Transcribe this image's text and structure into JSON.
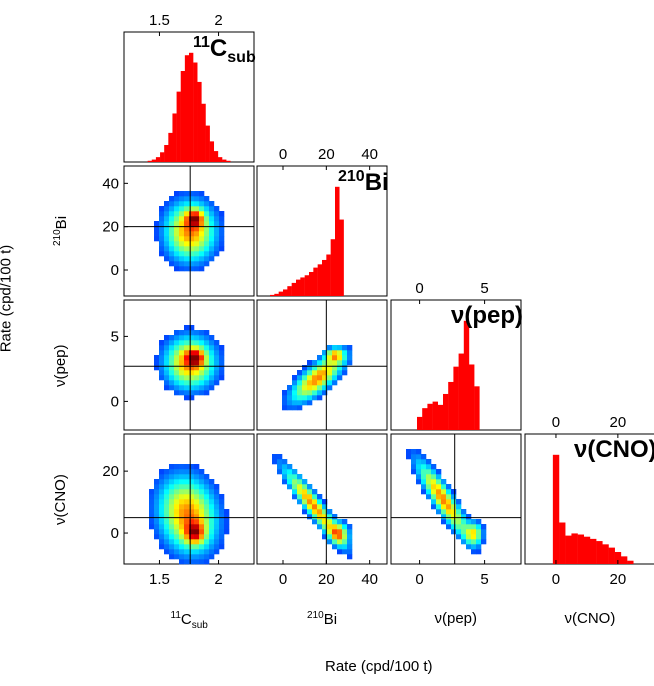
{
  "figure": {
    "global_xlabel": "Rate (cpd/100 t)",
    "global_ylabel": "Rate (cpd/100 t)"
  },
  "chart_data": {
    "type": "corner",
    "grid": false,
    "variables": [
      {
        "key": "c11",
        "label_base": "C",
        "label_sup": "11",
        "label_sub": "sub",
        "range": [
          1.2,
          2.3
        ],
        "ticks": [
          1.5,
          2
        ]
      },
      {
        "key": "bi210",
        "label_base": "Bi",
        "label_sup": "210",
        "label_sub": "",
        "range": [
          -12,
          48
        ],
        "ticks": [
          0,
          20,
          40
        ]
      },
      {
        "key": "pep",
        "label_base": "ν(pep)",
        "label_sup": "",
        "label_sub": "",
        "range": [
          -2.2,
          7.8
        ],
        "ticks": [
          0,
          5
        ]
      },
      {
        "key": "cno",
        "label_base": "ν(CNO)",
        "label_sup": "",
        "label_sub": "",
        "range": [
          -10,
          32
        ],
        "ticks": [
          0,
          20
        ]
      }
    ],
    "markers": {
      "c11": 1.76,
      "bi210": 20,
      "pep": 2.7,
      "cno": 5
    },
    "histograms": [
      {
        "var": "c11",
        "bins": [
          1.4,
          2.1
        ],
        "counts": [
          1,
          2,
          4,
          8,
          14,
          24,
          40,
          58,
          75,
          88,
          90,
          82,
          66,
          48,
          30,
          17,
          9,
          4,
          2,
          1
        ]
      },
      {
        "var": "bi210",
        "bins": [
          -6,
          28
        ],
        "counts": [
          1,
          2,
          4,
          6,
          9,
          12,
          15,
          17,
          19,
          22,
          26,
          29,
          33,
          38,
          52,
          100,
          70
        ]
      },
      {
        "var": "pep",
        "bins": [
          -0.2,
          4.6
        ],
        "counts": [
          12,
          20,
          24,
          26,
          23,
          33,
          44,
          58,
          70,
          100,
          60,
          40
        ]
      },
      {
        "var": "cno",
        "bins": [
          -1,
          25
        ],
        "counts": [
          100,
          38,
          26,
          28,
          27,
          25,
          23,
          21,
          18,
          15,
          11,
          7,
          3
        ]
      }
    ],
    "scatter": [
      {
        "x": "c11",
        "y": "bi210",
        "center": [
          1.76,
          18
        ],
        "sigma": [
          0.14,
          9
        ],
        "rho": 0.0,
        "peak": [
          1.8,
          24
        ]
      },
      {
        "x": "c11",
        "y": "pep",
        "center": [
          1.76,
          3
        ],
        "sigma": [
          0.14,
          1.3
        ],
        "rho": 0.0,
        "peak": [
          1.8,
          3.4
        ]
      },
      {
        "x": "c11",
        "y": "cno",
        "center": [
          1.74,
          6
        ],
        "sigma": [
          0.16,
          8
        ],
        "rho": -0.15,
        "peak": [
          1.8,
          0
        ]
      },
      {
        "x": "bi210",
        "y": "pep",
        "center": [
          16,
          1.8
        ],
        "sigma": [
          8,
          1.2
        ],
        "rho": 0.75,
        "peak": [
          24,
          3.6
        ]
      },
      {
        "x": "bi210",
        "y": "cno",
        "center": [
          14,
          9
        ],
        "sigma": [
          9,
          8
        ],
        "rho": -0.94,
        "peak": [
          26,
          0
        ]
      },
      {
        "x": "pep",
        "y": "cno",
        "center": [
          1.8,
          11
        ],
        "sigma": [
          1.3,
          8
        ],
        "rho": -0.9,
        "peak": [
          4.2,
          0
        ]
      }
    ]
  }
}
